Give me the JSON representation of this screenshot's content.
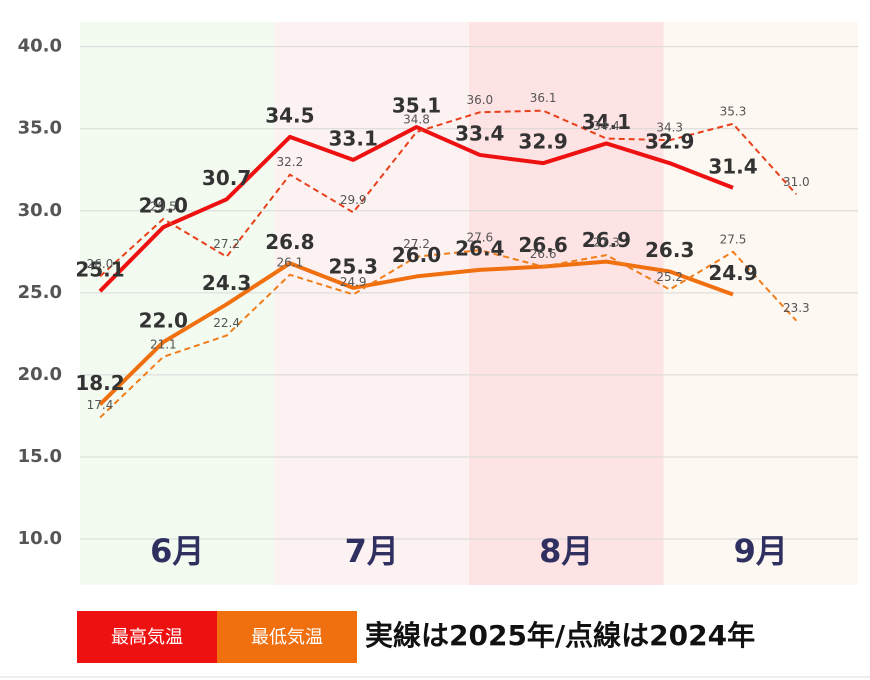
{
  "chart_data": {
    "type": "line",
    "categories": [
      null,
      null,
      null,
      null,
      null,
      null,
      null,
      null,
      null,
      null,
      null,
      null
    ],
    "months": [
      {
        "label": "6月",
        "color": "#f3fbf1"
      },
      {
        "label": "7月",
        "color": "#fdf2f2"
      },
      {
        "label": "8月",
        "color": "#fde3e4"
      },
      {
        "label": "9月",
        "color": "#fdf8f2"
      }
    ],
    "series": [
      {
        "name": "最高気温",
        "color": "#ee1111",
        "style": "solid",
        "values": [
          25.1,
          29.0,
          30.7,
          34.5,
          33.1,
          35.1,
          33.4,
          32.9,
          34.1,
          32.9,
          31.4,
          null
        ],
        "value_labels": [
          "25.1",
          "29.0",
          "30.7",
          "34.5",
          "33.1",
          "35.1",
          "33.4",
          "32.9",
          "34.1",
          "32.9",
          "31.4",
          null
        ]
      },
      {
        "color": "#e8401a",
        "style": "dashed",
        "values": [
          26.0,
          29.5,
          27.2,
          32.2,
          29.9,
          34.8,
          36.0,
          36.1,
          34.4,
          34.3,
          35.3,
          31.0
        ],
        "value_labels": [
          "26.0",
          "29.5",
          "27.2",
          "32.2",
          "29.9",
          "34.8",
          "36.0",
          "36.1",
          "34.4",
          "34.3",
          "35.3",
          "31.0"
        ]
      },
      {
        "name": "最低気温",
        "color": "#f07010",
        "style": "solid",
        "values": [
          18.2,
          22.0,
          24.3,
          26.8,
          25.3,
          26.0,
          26.4,
          26.6,
          26.9,
          26.3,
          24.9,
          null
        ],
        "value_labels": [
          "18.2",
          "22.0",
          "24.3",
          "26.8",
          "25.3",
          "26.0",
          "26.4",
          "26.6",
          "26.9",
          "26.3",
          "24.9",
          null
        ]
      },
      {
        "color": "#f07d1a",
        "style": "dashed",
        "values": [
          17.4,
          21.1,
          22.4,
          26.1,
          24.9,
          27.2,
          27.6,
          26.6,
          27.3,
          25.2,
          27.5,
          23.3
        ],
        "value_labels": [
          "17.4",
          "21.1",
          "22.4",
          "26.1",
          "24.9",
          "27.2",
          "27.6",
          "26.6",
          "27.3",
          "25.2",
          "27.5",
          "23.3"
        ]
      }
    ],
    "ylim": [
      7.2,
      41.5
    ],
    "yticks": [
      {
        "value": 10,
        "label": "10.0"
      },
      {
        "value": 15,
        "label": "15.0"
      },
      {
        "value": 20,
        "label": "20.0"
      },
      {
        "value": 25,
        "label": "25.0"
      },
      {
        "value": 30,
        "label": "30.0"
      },
      {
        "value": 35,
        "label": "35.0"
      },
      {
        "value": 40,
        "label": "40.0"
      }
    ],
    "grid": true,
    "annotation": "実線は2025年/点線は2024年"
  }
}
